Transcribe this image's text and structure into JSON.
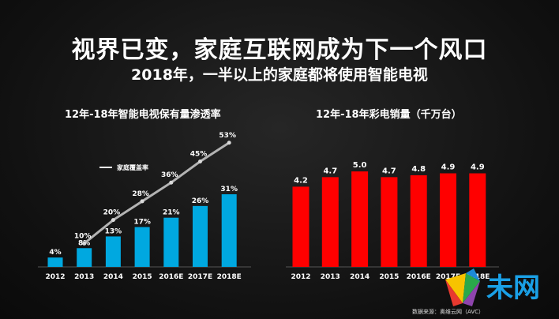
{
  "title": "视界已变，家庭互联网成为下一个风口",
  "subtitle": "2018年，一半以上的家庭都将使用智能电视",
  "source": "数据来源：奥维云网（AVC）",
  "logo_text": "未网",
  "colors": {
    "left_bar": "#00a8e0",
    "right_bar": "#ff0000",
    "line": "#b3b3b3"
  },
  "chart_data": [
    {
      "type": "bar",
      "title": "12年-18年智能电视保有量渗透率",
      "categories": [
        "2012",
        "2013",
        "2014",
        "2015",
        "2016E",
        "2017E",
        "2018E"
      ],
      "values": [
        4,
        8,
        13,
        17,
        21,
        26,
        31
      ],
      "value_labels": [
        "4%",
        "8%",
        "13%",
        "17%",
        "21%",
        "26%",
        "31%"
      ],
      "ylim": [
        0,
        60
      ],
      "line_series": {
        "name": "家庭覆盖率",
        "type": "line",
        "x": [
          "2013",
          "2014",
          "2015",
          "2016E",
          "2017E",
          "2018E"
        ],
        "values": [
          10,
          20,
          28,
          36,
          45,
          53
        ],
        "value_labels": [
          "10%",
          "20%",
          "28%",
          "36%",
          "45%",
          "53%"
        ]
      },
      "legend": "top-left"
    },
    {
      "type": "bar",
      "title": "12年-18年彩电销量（千万台）",
      "categories": [
        "2012",
        "2013",
        "2014",
        "2015",
        "2016E",
        "2017E",
        "2018E"
      ],
      "values": [
        4.2,
        4.7,
        5.0,
        4.7,
        4.8,
        4.9,
        4.9
      ],
      "value_labels": [
        "4.2",
        "4.7",
        "5.0",
        "4.7",
        "4.8",
        "4.9",
        "4.9"
      ],
      "ylim": [
        0,
        5.5
      ]
    }
  ]
}
